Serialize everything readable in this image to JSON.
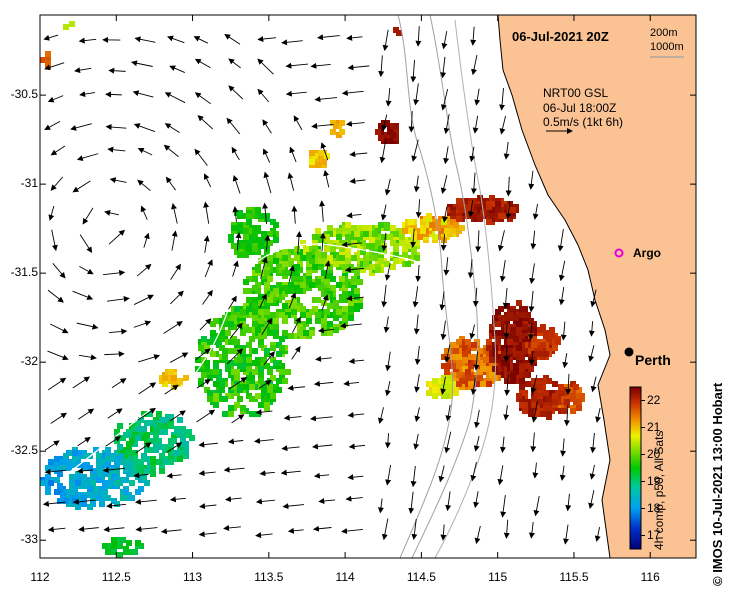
{
  "map": {
    "title": "06-Jul-2021 20Z",
    "model_info": [
      "NRT00 GSL",
      "06-Jul 18:00Z",
      "0.5m/s (1kt 6h)"
    ],
    "contours": [
      "200m",
      "1000m"
    ],
    "places": [
      {
        "name": "Argo",
        "lon": 115.78,
        "lat": -31.48
      },
      {
        "name": "Perth",
        "lon": 115.86,
        "lat": -31.95
      }
    ],
    "x_axis": {
      "ticks": [
        "112",
        "112.5",
        "113",
        "113.5",
        "114",
        "114.5",
        "115",
        "115.5",
        "116"
      ],
      "range": [
        112,
        116.3
      ]
    },
    "y_axis": {
      "ticks": [
        "-30.5",
        "-31",
        "-31.5",
        "-32",
        "-32.5",
        "-33"
      ],
      "range": [
        -33.1,
        -30.05
      ]
    },
    "colorbar": {
      "label": "4h comp, p50, All Sats",
      "ticks": [
        "17",
        "18",
        "19",
        "20",
        "21",
        "22"
      ],
      "range": [
        16.5,
        22.5
      ]
    },
    "credit": "© IMOS 10-Jul-2021 13:00 Hobart",
    "colors": {
      "land": "#fbc394",
      "eddy_center_lon": 112.45,
      "eddy_center_lat": -31.25
    }
  }
}
